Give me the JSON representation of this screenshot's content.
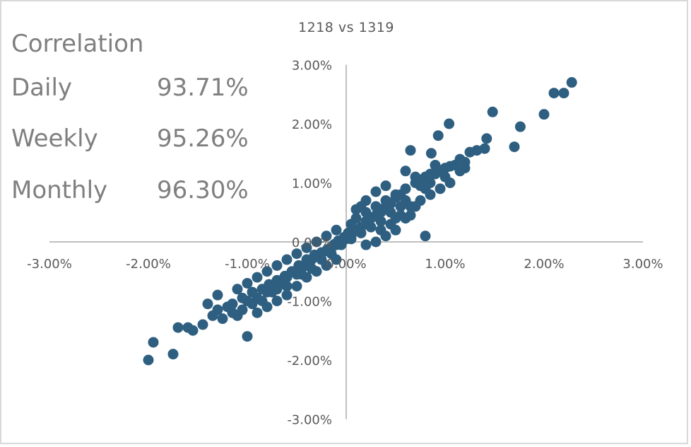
{
  "stats_panel": {
    "heading": "Correlation",
    "rows": [
      {
        "label": "Daily",
        "value": "93.71%"
      },
      {
        "label": "Weekly",
        "value": "95.26%"
      },
      {
        "label": "Monthly",
        "value": "96.30%"
      }
    ]
  },
  "chart_data": {
    "type": "scatter",
    "title": "1218 vs 1319",
    "xlabel": "",
    "ylabel": "",
    "xlim": [
      -0.03,
      0.03
    ],
    "ylim": [
      -0.03,
      0.03
    ],
    "x_ticks": [
      "-3.00%",
      "-2.00%",
      "-1.00%",
      "0.00%",
      "1.00%",
      "2.00%",
      "3.00%"
    ],
    "y_ticks": [
      "3.00%",
      "2.00%",
      "1.00%",
      "0.00%",
      "-1.00%",
      "-2.00%",
      "-3.00%"
    ],
    "grid": false,
    "legend": "none",
    "marker_color": "#2e5f80",
    "axis_color": "#bfbfbf",
    "series": [
      {
        "points": [
          [
            0.0228,
            0.027
          ],
          [
            0.022,
            0.0252
          ],
          [
            0.021,
            0.0252
          ],
          [
            0.02,
            0.0216
          ],
          [
            0.0176,
            0.0195
          ],
          [
            0.017,
            0.0161
          ],
          [
            0.0148,
            0.022
          ],
          [
            0.0142,
            0.0175
          ],
          [
            0.014,
            0.0158
          ],
          [
            0.0132,
            0.0155
          ],
          [
            0.0125,
            0.0152
          ],
          [
            0.0115,
            0.014
          ],
          [
            0.0105,
            0.0128
          ],
          [
            0.01,
            0.011
          ],
          [
            0.0095,
            0.012
          ],
          [
            0.009,
            0.013
          ],
          [
            0.0085,
            0.01
          ],
          [
            0.008,
            0.009
          ],
          [
            0.0075,
            0.0095
          ],
          [
            0.007,
            0.011
          ],
          [
            0.0104,
            0.02
          ],
          [
            0.0093,
            0.018
          ],
          [
            0.0086,
            0.015
          ],
          [
            0.0065,
            0.0155
          ],
          [
            0.006,
            0.012
          ],
          [
            0.0055,
            0.008
          ],
          [
            0.005,
            0.0075
          ],
          [
            0.0045,
            0.0065
          ],
          [
            0.004,
            0.006
          ],
          [
            0.0035,
            0.005
          ],
          [
            0.003,
            0.0045
          ],
          [
            0.0025,
            0.004
          ],
          [
            0.002,
            0.0035
          ],
          [
            0.0015,
            0.0025
          ],
          [
            0.001,
            0.002
          ],
          [
            0.0005,
            0.001
          ],
          [
            0.0,
            0.0005
          ],
          [
            -0.0005,
            0.0
          ],
          [
            -0.001,
            -0.0005
          ],
          [
            -0.0015,
            -0.001
          ],
          [
            -0.002,
            -0.0015
          ],
          [
            -0.0025,
            -0.002
          ],
          [
            -0.003,
            -0.0025
          ],
          [
            -0.0035,
            -0.003
          ],
          [
            -0.004,
            -0.004
          ],
          [
            -0.0045,
            -0.0045
          ],
          [
            -0.005,
            -0.0055
          ],
          [
            -0.006,
            -0.006
          ],
          [
            -0.0065,
            -0.007
          ],
          [
            -0.007,
            -0.008
          ],
          [
            -0.008,
            -0.0085
          ],
          [
            -0.009,
            -0.0095
          ],
          [
            -0.0095,
            -0.0105
          ],
          [
            -0.01,
            -0.01
          ],
          [
            -0.0105,
            -0.0115
          ],
          [
            -0.011,
            -0.0125
          ],
          [
            -0.012,
            -0.011
          ],
          [
            -0.0125,
            -0.013
          ],
          [
            -0.013,
            -0.0115
          ],
          [
            -0.0135,
            -0.0125
          ],
          [
            -0.014,
            -0.0105
          ],
          [
            -0.0145,
            -0.014
          ],
          [
            -0.01,
            -0.016
          ],
          [
            -0.0115,
            -0.012
          ],
          [
            -0.013,
            -0.009
          ],
          [
            -0.0155,
            -0.015
          ],
          [
            -0.016,
            -0.0145
          ],
          [
            -0.017,
            -0.0145
          ],
          [
            -0.02,
            -0.02
          ],
          [
            -0.0195,
            -0.017
          ],
          [
            -0.0175,
            -0.019
          ],
          [
            0.004,
            0.0095
          ],
          [
            0.003,
            0.0085
          ],
          [
            0.002,
            0.007
          ],
          [
            0.0015,
            0.006
          ],
          [
            0.001,
            0.0055
          ],
          [
            0.0005,
            0.003
          ],
          [
            0.0002,
            0.0015
          ],
          [
            -0.0002,
            0.0008
          ],
          [
            -0.0008,
            0.0002
          ],
          [
            -0.0012,
            -0.0004
          ],
          [
            -0.0018,
            -0.0012
          ],
          [
            -0.0025,
            -0.0018
          ],
          [
            -0.0032,
            -0.0022
          ],
          [
            -0.004,
            -0.003
          ],
          [
            -0.0048,
            -0.004
          ],
          [
            -0.0055,
            -0.005
          ],
          [
            -0.0062,
            -0.0058
          ],
          [
            -0.007,
            -0.0065
          ],
          [
            -0.0078,
            -0.0072
          ],
          [
            -0.0085,
            -0.008
          ],
          [
            0.0045,
            0.003
          ],
          [
            0.0055,
            0.0045
          ],
          [
            0.0065,
            0.006
          ],
          [
            0.0075,
            0.007
          ],
          [
            0.0085,
            0.008
          ],
          [
            0.0095,
            0.009
          ],
          [
            0.006,
            0.004
          ],
          [
            0.005,
            0.002
          ],
          [
            0.008,
            0.001
          ],
          [
            0.004,
            0.001
          ],
          [
            0.003,
            0.0
          ],
          [
            0.002,
            -0.0005
          ],
          [
            -0.001,
            -0.003
          ],
          [
            -0.002,
            -0.004
          ],
          [
            -0.003,
            -0.005
          ],
          [
            -0.004,
            -0.006
          ],
          [
            -0.005,
            -0.0075
          ],
          [
            -0.006,
            -0.009
          ],
          [
            -0.007,
            -0.01
          ],
          [
            -0.008,
            -0.011
          ],
          [
            -0.009,
            -0.012
          ],
          [
            -0.001,
            0.002
          ],
          [
            -0.002,
            0.001
          ],
          [
            -0.003,
            0.0
          ],
          [
            -0.004,
            -0.001
          ],
          [
            -0.005,
            -0.002
          ],
          [
            -0.006,
            -0.003
          ],
          [
            -0.007,
            -0.004
          ],
          [
            -0.008,
            -0.005
          ],
          [
            -0.009,
            -0.006
          ],
          [
            -0.01,
            -0.007
          ],
          [
            -0.011,
            -0.008
          ],
          [
            0.001,
            0.004
          ],
          [
            0.002,
            0.005
          ],
          [
            0.003,
            0.006
          ],
          [
            0.004,
            0.007
          ],
          [
            0.005,
            0.008
          ],
          [
            0.006,
            0.009
          ],
          [
            0.007,
            0.01
          ],
          [
            0.008,
            0.011
          ],
          [
            0.009,
            0.0115
          ],
          [
            0.01,
            0.0125
          ],
          [
            0.011,
            0.013
          ],
          [
            0.012,
            0.0135
          ],
          [
            0.0045,
            0.005
          ],
          [
            0.0035,
            0.0035
          ],
          [
            0.0025,
            0.0025
          ],
          [
            0.0015,
            0.0015
          ],
          [
            0.0005,
            0.0005
          ],
          [
            -0.0005,
            -0.0005
          ],
          [
            -0.0015,
            -0.002
          ],
          [
            -0.0025,
            -0.003
          ],
          [
            -0.0035,
            -0.0045
          ],
          [
            -0.0045,
            -0.0055
          ],
          [
            0.007,
            0.006
          ],
          [
            0.0065,
            0.0045
          ],
          [
            0.0055,
            0.006
          ],
          [
            0.0035,
            0.002
          ],
          [
            -0.006,
            -0.0075
          ],
          [
            -0.0075,
            -0.0085
          ],
          [
            -0.0085,
            -0.01
          ],
          [
            -0.0095,
            -0.0085
          ],
          [
            -0.0105,
            -0.0095
          ],
          [
            -0.0115,
            -0.0105
          ],
          [
            0.0105,
            0.01
          ],
          [
            0.0115,
            0.012
          ],
          [
            0.012,
            0.0125
          ],
          [
            0.0085,
            0.0115
          ],
          [
            0.0075,
            0.0105
          ],
          [
            0.006,
            0.007
          ],
          [
            0.005,
            0.004
          ]
        ]
      }
    ]
  }
}
